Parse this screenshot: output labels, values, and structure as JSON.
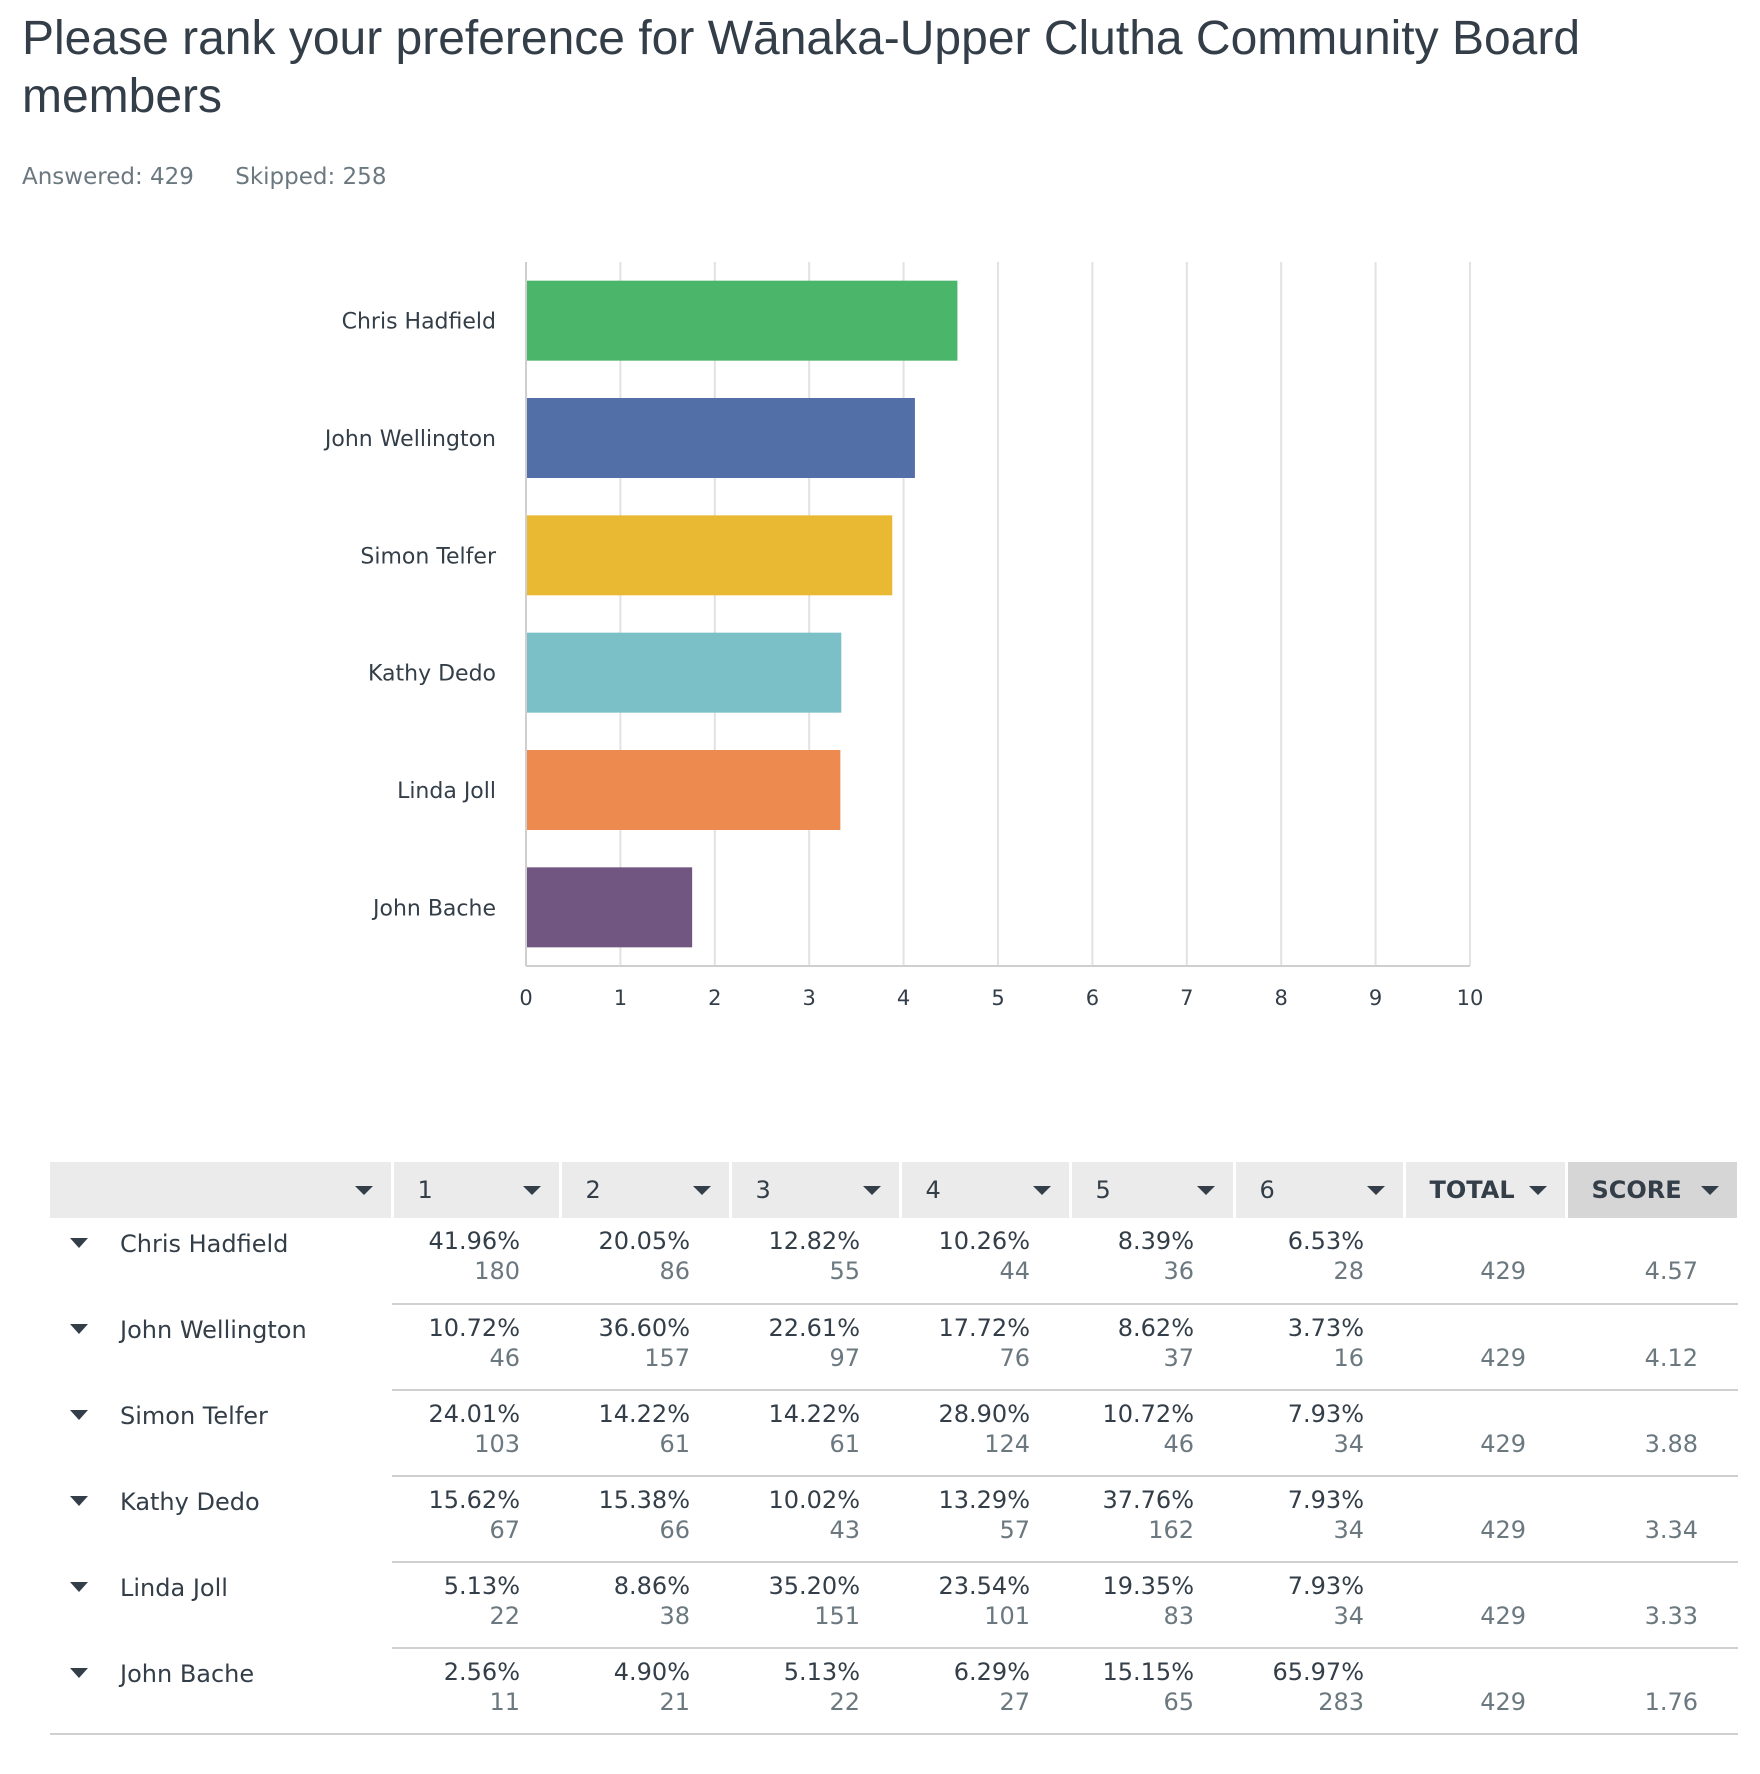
{
  "title": "Please rank your preference for Wānaka-Upper Clutha Community Board members",
  "answered_label": "Answered: 429",
  "skipped_label": "Skipped: 258",
  "chart_data": {
    "type": "bar",
    "orientation": "horizontal",
    "categories": [
      "Chris Hadfield",
      "John Wellington",
      "Simon Telfer",
      "Kathy Dedo",
      "Linda Joll",
      "John Bache"
    ],
    "values": [
      4.57,
      4.12,
      3.88,
      3.34,
      3.33,
      1.76
    ],
    "colors": [
      "#4bb56a",
      "#536fa8",
      "#eab934",
      "#7bc0c6",
      "#ec8a50",
      "#715681"
    ],
    "xlim": [
      0,
      10
    ],
    "xticks": [
      0,
      1,
      2,
      3,
      4,
      5,
      6,
      7,
      8,
      9,
      10
    ],
    "grid": true,
    "legend": "none"
  },
  "table": {
    "headers": [
      "",
      "1",
      "2",
      "3",
      "4",
      "5",
      "6",
      "TOTAL",
      "SCORE"
    ],
    "rows": [
      {
        "name": "Chris Hadfield",
        "cells": [
          {
            "pct": "41.96%",
            "n": "180"
          },
          {
            "pct": "20.05%",
            "n": "86"
          },
          {
            "pct": "12.82%",
            "n": "55"
          },
          {
            "pct": "10.26%",
            "n": "44"
          },
          {
            "pct": "8.39%",
            "n": "36"
          },
          {
            "pct": "6.53%",
            "n": "28"
          }
        ],
        "total": "429",
        "score": "4.57"
      },
      {
        "name": "John Wellington",
        "cells": [
          {
            "pct": "10.72%",
            "n": "46"
          },
          {
            "pct": "36.60%",
            "n": "157"
          },
          {
            "pct": "22.61%",
            "n": "97"
          },
          {
            "pct": "17.72%",
            "n": "76"
          },
          {
            "pct": "8.62%",
            "n": "37"
          },
          {
            "pct": "3.73%",
            "n": "16"
          }
        ],
        "total": "429",
        "score": "4.12"
      },
      {
        "name": "Simon Telfer",
        "cells": [
          {
            "pct": "24.01%",
            "n": "103"
          },
          {
            "pct": "14.22%",
            "n": "61"
          },
          {
            "pct": "14.22%",
            "n": "61"
          },
          {
            "pct": "28.90%",
            "n": "124"
          },
          {
            "pct": "10.72%",
            "n": "46"
          },
          {
            "pct": "7.93%",
            "n": "34"
          }
        ],
        "total": "429",
        "score": "3.88"
      },
      {
        "name": "Kathy Dedo",
        "cells": [
          {
            "pct": "15.62%",
            "n": "67"
          },
          {
            "pct": "15.38%",
            "n": "66"
          },
          {
            "pct": "10.02%",
            "n": "43"
          },
          {
            "pct": "13.29%",
            "n": "57"
          },
          {
            "pct": "37.76%",
            "n": "162"
          },
          {
            "pct": "7.93%",
            "n": "34"
          }
        ],
        "total": "429",
        "score": "3.34"
      },
      {
        "name": "Linda Joll",
        "cells": [
          {
            "pct": "5.13%",
            "n": "22"
          },
          {
            "pct": "8.86%",
            "n": "38"
          },
          {
            "pct": "35.20%",
            "n": "151"
          },
          {
            "pct": "23.54%",
            "n": "101"
          },
          {
            "pct": "19.35%",
            "n": "83"
          },
          {
            "pct": "7.93%",
            "n": "34"
          }
        ],
        "total": "429",
        "score": "3.33"
      },
      {
        "name": "John Bache",
        "cells": [
          {
            "pct": "2.56%",
            "n": "11"
          },
          {
            "pct": "4.90%",
            "n": "21"
          },
          {
            "pct": "5.13%",
            "n": "22"
          },
          {
            "pct": "6.29%",
            "n": "27"
          },
          {
            "pct": "15.15%",
            "n": "65"
          },
          {
            "pct": "65.97%",
            "n": "283"
          }
        ],
        "total": "429",
        "score": "1.76"
      }
    ]
  }
}
